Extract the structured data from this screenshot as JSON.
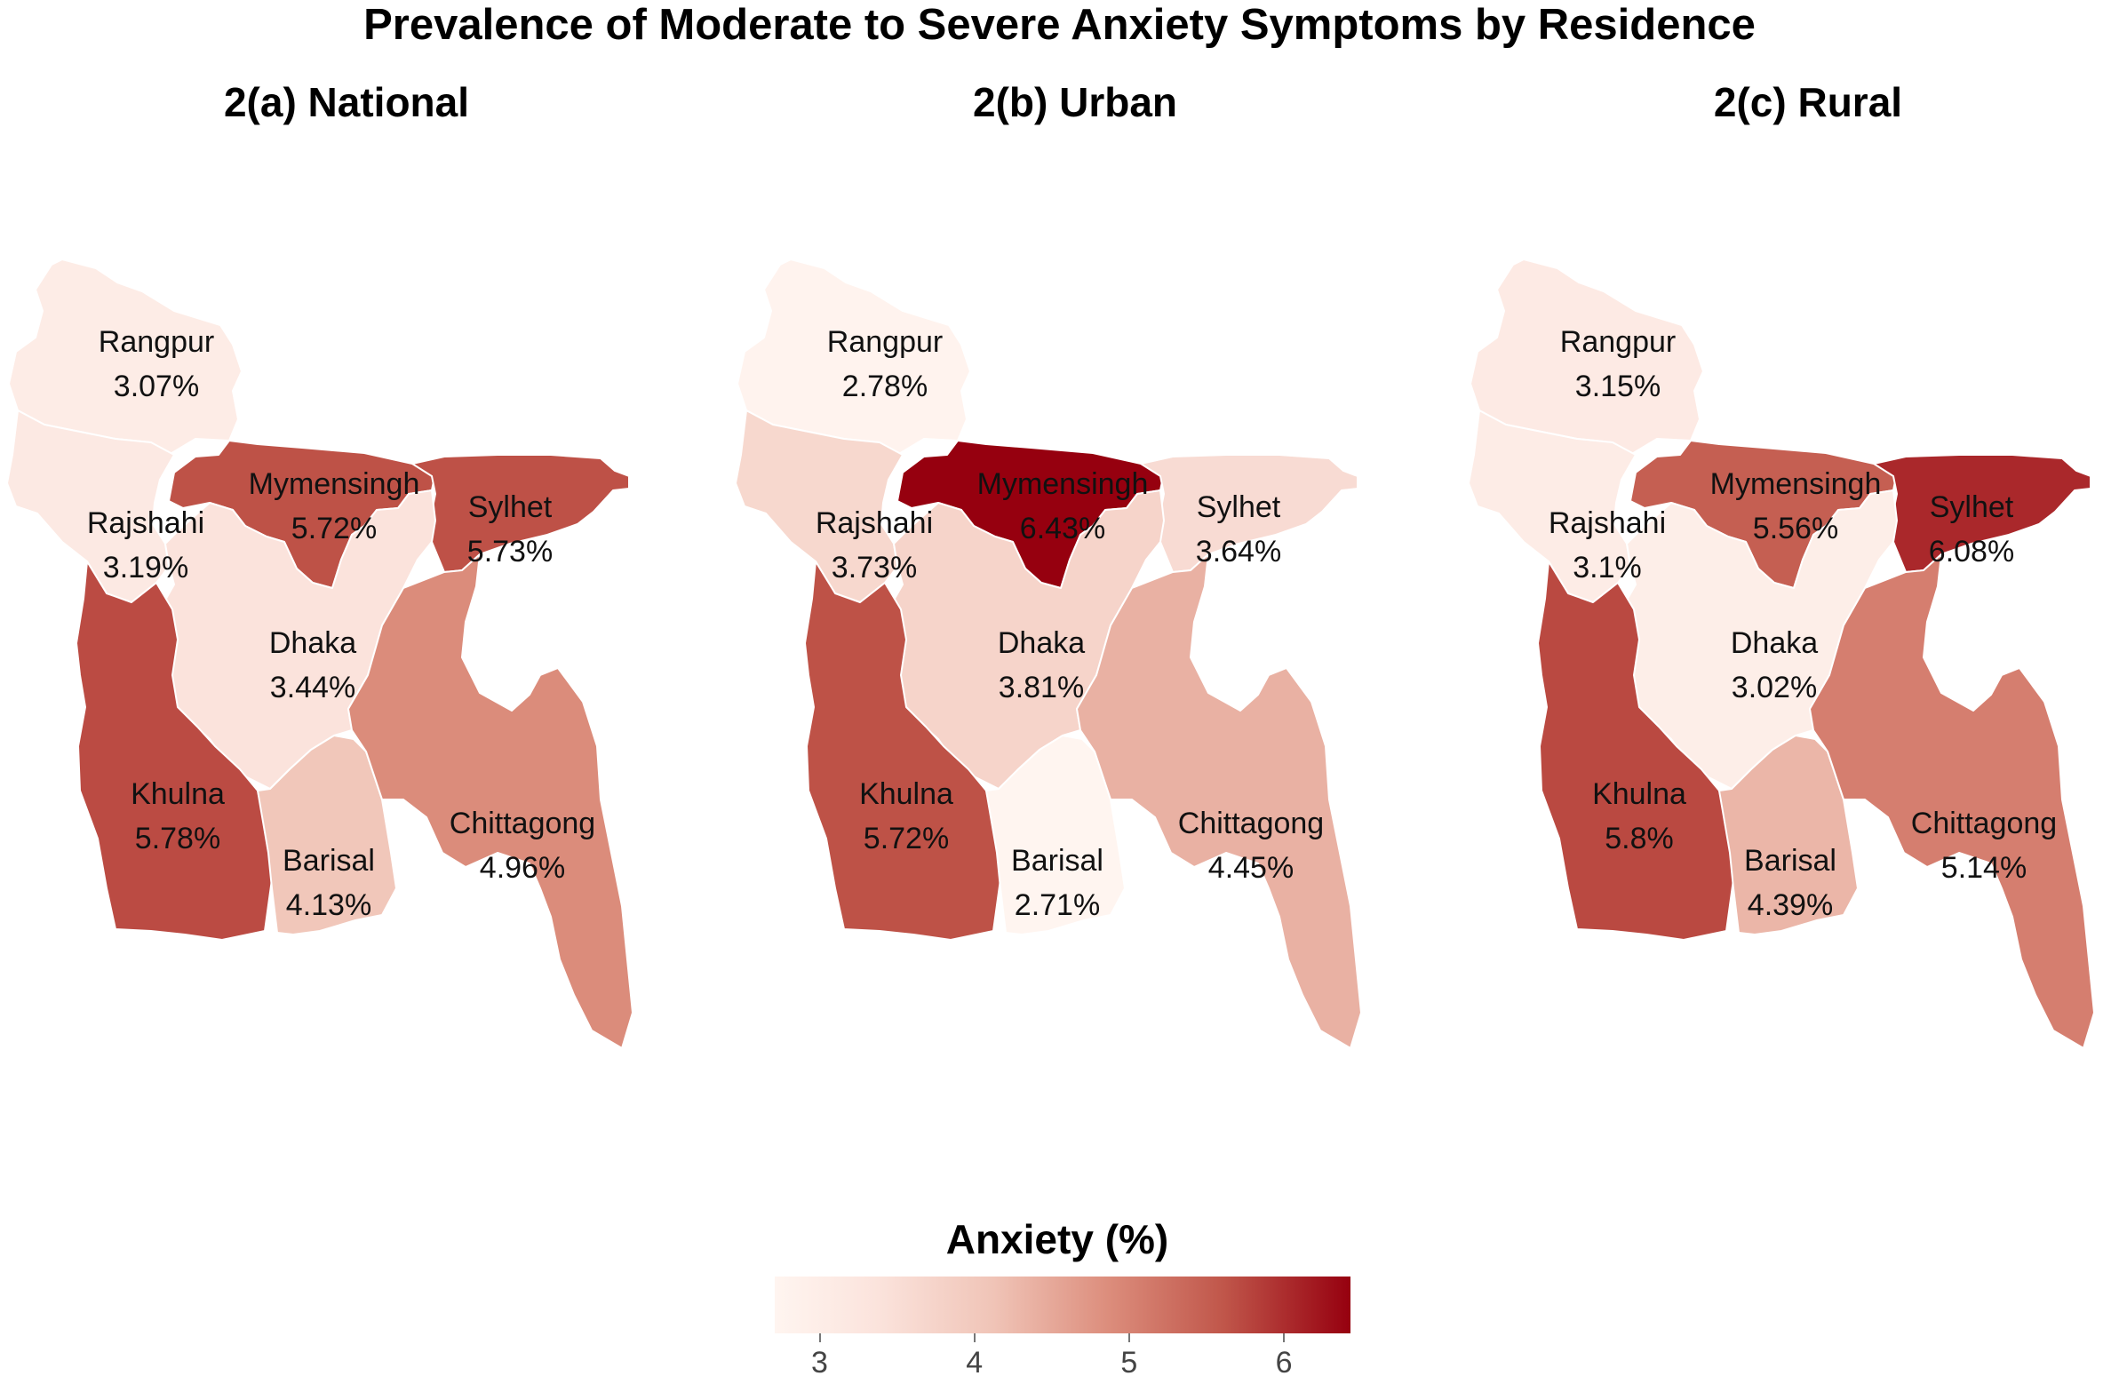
{
  "title": "Prevalence of Moderate to Severe Anxiety Symptoms by Residence",
  "legend": {
    "title": "Anxiety (%)",
    "min": 2.71,
    "max": 6.43,
    "ticks": [
      "3",
      "4",
      "5",
      "6"
    ],
    "colors": [
      "#fff5f0",
      "#fbe3dc",
      "#f0c4b7",
      "#dc8d7c",
      "#c0564a",
      "#96000f"
    ]
  },
  "panels": [
    {
      "title": "2(a) National",
      "regions": [
        {
          "name": "Rangpur",
          "value": 3.07,
          "value_label": "3.07%"
        },
        {
          "name": "Rajshahi",
          "value": 3.19,
          "value_label": "3.19%"
        },
        {
          "name": "Mymensingh",
          "value": 5.72,
          "value_label": "5.72%"
        },
        {
          "name": "Sylhet",
          "value": 5.73,
          "value_label": "5.73%"
        },
        {
          "name": "Dhaka",
          "value": 3.44,
          "value_label": "3.44%"
        },
        {
          "name": "Khulna",
          "value": 5.78,
          "value_label": "5.78%"
        },
        {
          "name": "Barisal",
          "value": 4.13,
          "value_label": "4.13%"
        },
        {
          "name": "Chittagong",
          "value": 4.96,
          "value_label": "4.96%"
        }
      ]
    },
    {
      "title": "2(b) Urban",
      "regions": [
        {
          "name": "Rangpur",
          "value": 2.78,
          "value_label": "2.78%"
        },
        {
          "name": "Rajshahi",
          "value": 3.73,
          "value_label": "3.73%"
        },
        {
          "name": "Mymensingh",
          "value": 6.43,
          "value_label": "6.43%"
        },
        {
          "name": "Sylhet",
          "value": 3.64,
          "value_label": "3.64%"
        },
        {
          "name": "Dhaka",
          "value": 3.81,
          "value_label": "3.81%"
        },
        {
          "name": "Khulna",
          "value": 5.72,
          "value_label": "5.72%"
        },
        {
          "name": "Barisal",
          "value": 2.71,
          "value_label": "2.71%"
        },
        {
          "name": "Chittagong",
          "value": 4.45,
          "value_label": "4.45%"
        }
      ]
    },
    {
      "title": "2(c) Rural",
      "regions": [
        {
          "name": "Rangpur",
          "value": 3.15,
          "value_label": "3.15%"
        },
        {
          "name": "Rajshahi",
          "value": 3.1,
          "value_label": "3.1%"
        },
        {
          "name": "Mymensingh",
          "value": 5.56,
          "value_label": "5.56%"
        },
        {
          "name": "Sylhet",
          "value": 6.08,
          "value_label": "6.08%"
        },
        {
          "name": "Dhaka",
          "value": 3.02,
          "value_label": "3.02%"
        },
        {
          "name": "Khulna",
          "value": 5.8,
          "value_label": "5.8%"
        },
        {
          "name": "Barisal",
          "value": 4.39,
          "value_label": "4.39%"
        },
        {
          "name": "Chittagong",
          "value": 5.14,
          "value_label": "5.14%"
        }
      ]
    }
  ]
}
